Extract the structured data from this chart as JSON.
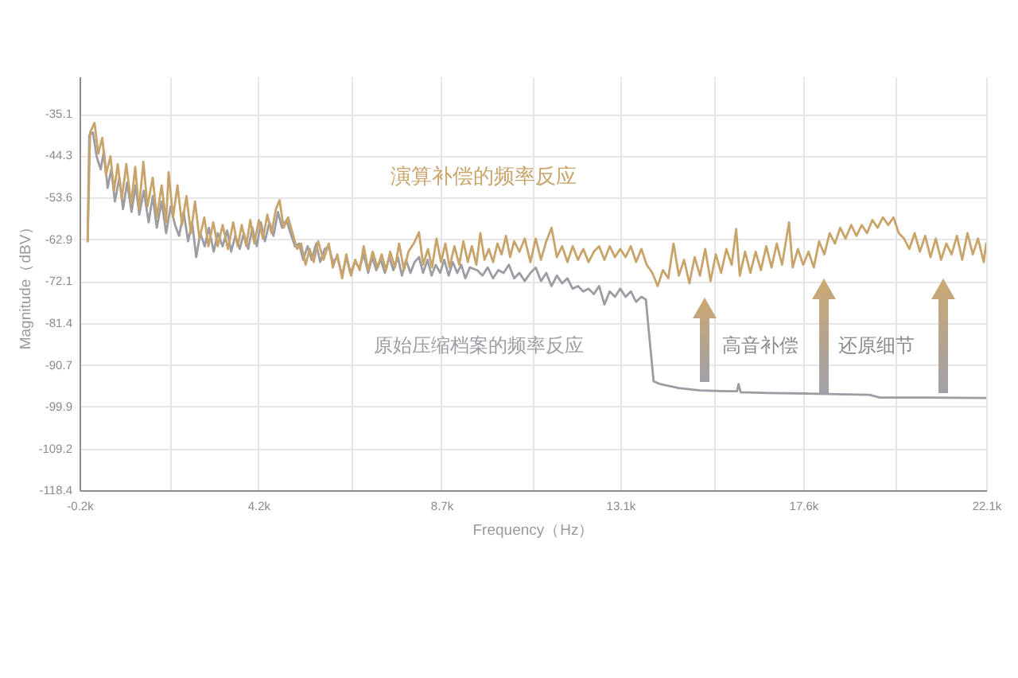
{
  "chart_data": {
    "type": "line",
    "xlabel": "Frequency（Hz）",
    "ylabel": "Magnitude（dBV）",
    "xlim": [
      -0.2,
      22.1
    ],
    "ylim": [
      -118.4,
      -26.8
    ],
    "xticks": [
      {
        "value": -0.2,
        "label": "-0.2k"
      },
      {
        "value": 2.03,
        "label": null
      },
      {
        "value": 4.2,
        "label": "4.2k"
      },
      {
        "value": 6.49,
        "label": null
      },
      {
        "value": 8.7,
        "label": "8.7k"
      },
      {
        "value": 10.95,
        "label": null
      },
      {
        "value": 13.1,
        "label": "13.1k"
      },
      {
        "value": 15.41,
        "label": null
      },
      {
        "value": 17.6,
        "label": "17.6k"
      },
      {
        "value": 19.87,
        "label": null
      },
      {
        "value": 22.1,
        "label": "22.1k"
      }
    ],
    "yticks": [
      -118.4,
      -109.2,
      -99.9,
      -90.7,
      -81.4,
      -72.1,
      -62.9,
      -53.6,
      -44.3,
      -35.1
    ],
    "grid": true,
    "series": [
      {
        "name": "演算补偿的频率反应",
        "color": "#c8a46a",
        "x": [
          0.0,
          0.06,
          0.17,
          0.26,
          0.36,
          0.45,
          0.56,
          0.65,
          0.74,
          0.84,
          0.95,
          1.07,
          1.17,
          1.26,
          1.37,
          1.47,
          1.6,
          1.7,
          1.82,
          1.93,
          1.99,
          2.1,
          2.21,
          2.32,
          2.43,
          2.54,
          2.64,
          2.75,
          2.87,
          2.97,
          3.09,
          3.2,
          3.32,
          3.45,
          3.58,
          3.69,
          3.79,
          3.9,
          4.0,
          4.1,
          4.21,
          4.31,
          4.42,
          4.52,
          4.63,
          4.72,
          4.82,
          4.93,
          5.04,
          5.15,
          5.25,
          5.36,
          5.46,
          5.56,
          5.67,
          5.8,
          5.93,
          6.03,
          6.14,
          6.26,
          6.36,
          6.48,
          6.58,
          6.69,
          6.79,
          6.9,
          7.01,
          7.13,
          7.23,
          7.34,
          7.44,
          7.56,
          7.66,
          7.78,
          7.89,
          8.02,
          8.15,
          8.25,
          8.37,
          8.47,
          8.58,
          8.69,
          8.8,
          8.9,
          9.02,
          9.14,
          9.24,
          9.35,
          9.45,
          9.56,
          9.66,
          9.76,
          9.87,
          9.97,
          10.08,
          10.18,
          10.29,
          10.39,
          10.49,
          10.62,
          10.75,
          10.89,
          11.02,
          11.15,
          11.28,
          11.41,
          11.54,
          11.67,
          11.8,
          11.93,
          12.06,
          12.19,
          12.32,
          12.45,
          12.58,
          12.71,
          12.84,
          12.97,
          13.1,
          13.23,
          13.36,
          13.49,
          13.62,
          13.75,
          13.89,
          14.02,
          14.15,
          14.28,
          14.41,
          14.54,
          14.67,
          14.8,
          14.93,
          15.06,
          15.19,
          15.32,
          15.45,
          15.58,
          15.71,
          15.84,
          15.95,
          16.04,
          16.17,
          16.3,
          16.43,
          16.56,
          16.69,
          16.82,
          16.95,
          17.08,
          17.25,
          17.34,
          17.47,
          17.6,
          17.73,
          17.86,
          17.99,
          18.12,
          18.25,
          18.38,
          18.51,
          18.64,
          18.78,
          18.91,
          19.04,
          19.17,
          19.3,
          19.43,
          19.56,
          19.69,
          19.82,
          19.95,
          20.08,
          20.21,
          20.34,
          20.47,
          20.6,
          20.73,
          20.86,
          20.99,
          21.12,
          21.25,
          21.38,
          21.51,
          21.64,
          21.77,
          21.9,
          22.04,
          22.1
        ],
        "values": [
          -63.3,
          -39.2,
          -37.1,
          -43.9,
          -40.4,
          -48.6,
          -44.5,
          -52.1,
          -46.2,
          -53.9,
          -46.2,
          -55.0,
          -46.8,
          -56.2,
          -45.7,
          -55.6,
          -49.2,
          -58.0,
          -50.9,
          -59.1,
          -48.0,
          -58.0,
          -50.9,
          -59.7,
          -53.3,
          -61.5,
          -54.5,
          -62.7,
          -58.0,
          -64.4,
          -59.1,
          -64.4,
          -59.7,
          -65.0,
          -59.1,
          -64.4,
          -59.7,
          -64.4,
          -58.6,
          -63.8,
          -58.6,
          -62.7,
          -57.4,
          -61.5,
          -56.2,
          -54.2,
          -60.3,
          -58.0,
          -61.5,
          -65.0,
          -63.8,
          -68.5,
          -65.0,
          -67.9,
          -63.3,
          -67.4,
          -63.8,
          -69.1,
          -66.2,
          -71.5,
          -66.2,
          -70.9,
          -67.4,
          -69.7,
          -64.4,
          -69.7,
          -65.6,
          -69.1,
          -66.2,
          -69.7,
          -65.6,
          -69.1,
          -63.8,
          -69.7,
          -65.6,
          -63.8,
          -61.3,
          -68.5,
          -65.0,
          -69.1,
          -62.7,
          -67.9,
          -63.8,
          -69.1,
          -64.4,
          -68.5,
          -63.3,
          -67.9,
          -64.4,
          -68.5,
          -61.5,
          -67.4,
          -65.0,
          -67.9,
          -63.8,
          -66.2,
          -62.1,
          -66.8,
          -63.3,
          -65.6,
          -62.7,
          -67.9,
          -62.7,
          -67.4,
          -63.3,
          -60.3,
          -66.8,
          -64.4,
          -67.9,
          -64.4,
          -67.4,
          -65.0,
          -67.9,
          -65.6,
          -64.4,
          -67.4,
          -64.4,
          -66.8,
          -65.0,
          -66.8,
          -64.4,
          -67.9,
          -65.0,
          -68.5,
          -70.3,
          -73.2,
          -69.7,
          -71.5,
          -63.8,
          -70.9,
          -67.4,
          -72.6,
          -66.8,
          -70.9,
          -65.0,
          -72.1,
          -66.2,
          -70.3,
          -65.0,
          -68.5,
          -60.6,
          -70.9,
          -65.6,
          -70.3,
          -65.6,
          -69.7,
          -64.4,
          -69.1,
          -63.8,
          -68.5,
          -59.1,
          -69.1,
          -65.0,
          -68.5,
          -65.6,
          -69.1,
          -63.3,
          -66.2,
          -61.5,
          -63.8,
          -60.3,
          -62.7,
          -59.7,
          -62.1,
          -59.7,
          -61.5,
          -58.6,
          -60.3,
          -58.0,
          -59.7,
          -58.0,
          -61.5,
          -62.7,
          -65.0,
          -61.5,
          -65.6,
          -62.1,
          -66.8,
          -62.7,
          -67.4,
          -63.8,
          -66.2,
          -62.1,
          -67.4,
          -61.5,
          -66.2,
          -62.7,
          -67.9,
          -63.8
        ]
      },
      {
        "name": "原始压缩档案的频率反应",
        "color": "#9c9ca4",
        "x": [
          0.0,
          0.04,
          0.13,
          0.22,
          0.32,
          0.4,
          0.49,
          0.58,
          0.67,
          0.78,
          0.87,
          0.97,
          1.08,
          1.18,
          1.27,
          1.38,
          1.5,
          1.6,
          1.7,
          1.82,
          1.93,
          2.04,
          2.15,
          2.25,
          2.36,
          2.47,
          2.57,
          2.67,
          2.77,
          2.88,
          2.98,
          3.1,
          3.2,
          3.32,
          3.43,
          3.53,
          3.63,
          3.74,
          3.84,
          3.95,
          4.05,
          4.16,
          4.26,
          4.36,
          4.47,
          4.57,
          4.68,
          4.78,
          4.89,
          4.99,
          5.1,
          5.2,
          5.3,
          5.41,
          5.51,
          5.62,
          5.72,
          5.83,
          5.93,
          6.03,
          6.14,
          6.26,
          6.36,
          6.46,
          6.58,
          6.69,
          6.79,
          6.9,
          7.0,
          7.1,
          7.21,
          7.31,
          7.42,
          7.52,
          7.63,
          7.73,
          7.83,
          7.94,
          8.04,
          8.15,
          8.25,
          8.36,
          8.46,
          8.56,
          8.67,
          8.77,
          8.88,
          8.98,
          9.09,
          9.19,
          9.29,
          9.4,
          9.58,
          9.71,
          9.84,
          9.97,
          10.1,
          10.23,
          10.36,
          10.49,
          10.62,
          10.75,
          10.89,
          11.02,
          11.15,
          11.28,
          11.41,
          11.54,
          11.67,
          11.8,
          11.93,
          12.06,
          12.19,
          12.32,
          12.45,
          12.58,
          12.71,
          12.84,
          12.97,
          13.1,
          13.23,
          13.36,
          13.49,
          13.62,
          13.73,
          13.82,
          13.92,
          14.08,
          14.54,
          15.06,
          15.71,
          15.97,
          16.01,
          16.06,
          16.75,
          17.67,
          18.71,
          19.23,
          19.49,
          20.67,
          22.1
        ],
        "values": [
          -63.3,
          -39.8,
          -39.2,
          -44.5,
          -47.4,
          -43.3,
          -51.5,
          -47.4,
          -54.5,
          -49.2,
          -56.2,
          -50.3,
          -56.8,
          -50.9,
          -57.4,
          -52.1,
          -59.1,
          -53.3,
          -60.3,
          -54.5,
          -61.5,
          -55.6,
          -59.7,
          -62.1,
          -56.8,
          -63.3,
          -59.1,
          -66.8,
          -61.5,
          -64.4,
          -60.3,
          -65.6,
          -61.5,
          -64.4,
          -60.9,
          -65.6,
          -62.1,
          -65.0,
          -61.5,
          -65.0,
          -60.3,
          -64.4,
          -59.1,
          -63.3,
          -59.1,
          -62.1,
          -56.8,
          -60.3,
          -58.6,
          -61.5,
          -64.4,
          -63.8,
          -67.4,
          -64.4,
          -67.4,
          -63.8,
          -67.9,
          -65.0,
          -64.4,
          -67.9,
          -66.8,
          -70.9,
          -66.8,
          -70.3,
          -67.9,
          -69.1,
          -66.2,
          -70.3,
          -66.8,
          -69.7,
          -67.4,
          -70.3,
          -66.8,
          -69.7,
          -66.8,
          -70.9,
          -67.4,
          -70.3,
          -67.9,
          -66.8,
          -70.3,
          -67.4,
          -70.9,
          -68.5,
          -70.3,
          -67.4,
          -70.9,
          -67.9,
          -70.3,
          -68.5,
          -71.5,
          -69.1,
          -69.7,
          -70.9,
          -69.1,
          -71.5,
          -69.7,
          -70.3,
          -68.5,
          -71.5,
          -70.3,
          -72.1,
          -70.3,
          -69.1,
          -72.1,
          -70.3,
          -73.2,
          -70.9,
          -72.6,
          -71.5,
          -73.8,
          -73.2,
          -74.4,
          -73.8,
          -75.0,
          -73.2,
          -77.3,
          -74.4,
          -75.6,
          -73.8,
          -75.6,
          -74.4,
          -76.7,
          -75.6,
          -76.2,
          -84.9,
          -94.3,
          -94.9,
          -95.8,
          -96.3,
          -96.5,
          -96.5,
          -94.9,
          -96.7,
          -96.9,
          -97.0,
          -97.2,
          -97.3,
          -97.9,
          -97.9,
          -98.0
        ]
      }
    ],
    "annotations": [
      "高音补偿",
      "还原细节"
    ]
  }
}
